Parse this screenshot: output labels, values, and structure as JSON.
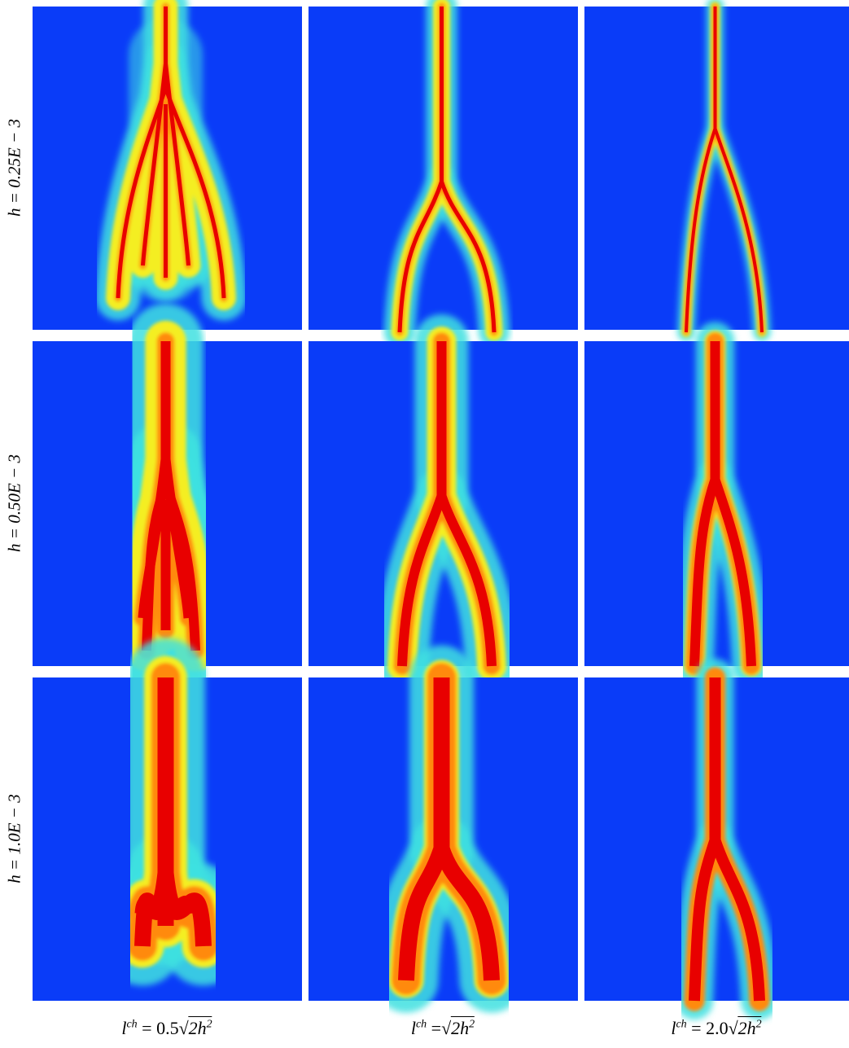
{
  "row_labels": [
    "h = 0.25E − 3",
    "h = 0.50E − 3",
    "h = 1.0E − 3"
  ],
  "column_labels": [
    {
      "symbol": "l",
      "superscript": "ch",
      "equals": "= 0.5",
      "radical": "√",
      "radicand": "2h",
      "exponent": "2"
    },
    {
      "symbol": "l",
      "superscript": "ch",
      "equals": "=",
      "radical": "√",
      "radicand": "2h",
      "exponent": "2"
    },
    {
      "symbol": "l",
      "superscript": "ch",
      "equals": "= 2.0",
      "radical": "√",
      "radicand": "2h",
      "exponent": "2"
    }
  ]
}
